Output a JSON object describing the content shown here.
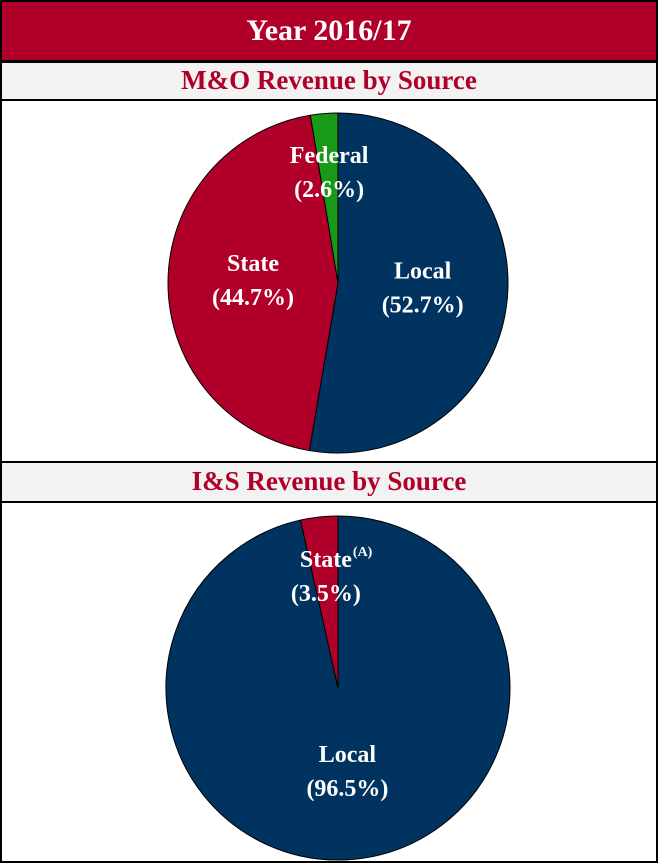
{
  "header": {
    "title": "Year 2016/17"
  },
  "chart_data": [
    {
      "type": "pie",
      "title": "M&O Revenue by Source",
      "categories": [
        "Local",
        "State",
        "Federal"
      ],
      "values": [
        52.7,
        44.7,
        2.6
      ],
      "value_labels": [
        "(52.7%)",
        "(44.7%)",
        "(2.6%)"
      ],
      "colors": [
        "#00335f",
        "#b0002a",
        "#179a17"
      ]
    },
    {
      "type": "pie",
      "title": "I&S Revenue by Source",
      "categories": [
        "Local",
        "State"
      ],
      "values": [
        96.5,
        3.5
      ],
      "value_labels": [
        "(96.5%)",
        "(3.5%)"
      ],
      "superscripts": [
        null,
        "(A)"
      ],
      "colors": [
        "#00335f",
        "#b0002a"
      ]
    }
  ]
}
